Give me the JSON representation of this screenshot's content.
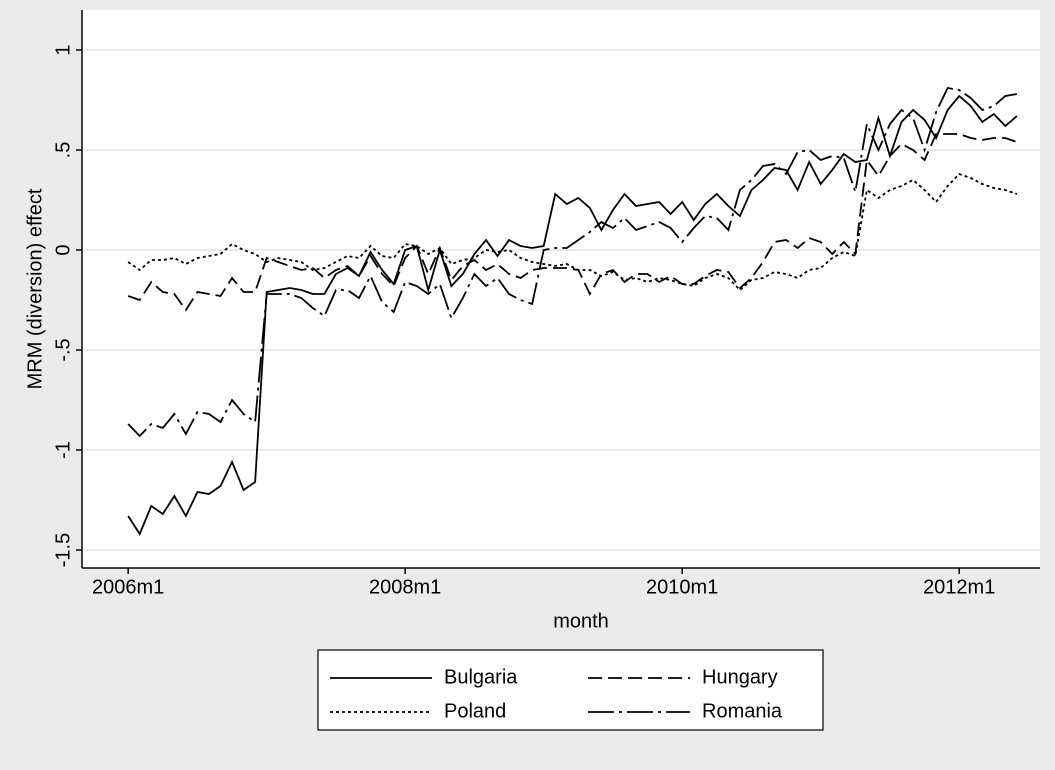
{
  "chart_data": {
    "type": "line",
    "x_label": "month",
    "y_label": "MRM (diversion) effect",
    "x": [
      552,
      553,
      554,
      555,
      556,
      557,
      558,
      559,
      560,
      561,
      562,
      563,
      564,
      565,
      566,
      567,
      568,
      569,
      570,
      571,
      572,
      573,
      574,
      575,
      576,
      577,
      578,
      579,
      580,
      581,
      582,
      583,
      584,
      585,
      586,
      587,
      588,
      589,
      590,
      591,
      592,
      593,
      594,
      595,
      596,
      597,
      598,
      599,
      600,
      601,
      602,
      603,
      604,
      605,
      606,
      607,
      608,
      609,
      610,
      611,
      612,
      613,
      614,
      615,
      616,
      617,
      618,
      619,
      620,
      621,
      622,
      623,
      624,
      625,
      626,
      627,
      628,
      629
    ],
    "xlim": [
      548,
      631
    ],
    "xticks": [
      {
        "value": 552,
        "label": "2006m1"
      },
      {
        "value": 576,
        "label": "2008m1"
      },
      {
        "value": 600,
        "label": "2010m1"
      },
      {
        "value": 624,
        "label": "2012m1"
      }
    ],
    "ylim": [
      -1.59,
      1.2
    ],
    "yticks": [
      1,
      {
        "value": 0.5,
        "label": ".5"
      },
      0,
      {
        "value": -0.5,
        "label": "-.5"
      },
      -1,
      {
        "value": -1.5,
        "label": "-1.5"
      }
    ],
    "grid": true,
    "legend": "bottom",
    "series": [
      {
        "name": "Bulgaria",
        "color": "#000000",
        "linestyle": "solid",
        "values": [
          -1.33,
          -1.42,
          -1.28,
          -1.32,
          -1.23,
          -1.33,
          -1.21,
          -1.22,
          -1.18,
          -1.06,
          -1.2,
          -1.16,
          -0.21,
          -0.2,
          -0.19,
          -0.2,
          -0.22,
          -0.22,
          -0.12,
          -0.09,
          -0.13,
          -0.01,
          -0.1,
          -0.17,
          0.0,
          0.02,
          -0.2,
          0.0,
          -0.18,
          -0.12,
          -0.02,
          0.05,
          -0.03,
          0.05,
          0.02,
          0.01,
          0.02,
          0.28,
          0.23,
          0.26,
          0.21,
          0.1,
          0.2,
          0.28,
          0.22,
          0.23,
          0.24,
          0.18,
          0.24,
          0.15,
          0.23,
          0.28,
          0.22,
          0.17,
          0.3,
          0.35,
          0.41,
          0.4,
          0.3,
          0.44,
          0.33,
          0.4,
          0.48,
          0.44,
          0.45,
          0.66,
          0.47,
          0.64,
          0.7,
          0.65,
          0.56,
          0.7,
          0.77,
          0.72,
          0.64,
          0.68,
          0.62,
          0.67
        ]
      },
      {
        "name": "Hungary",
        "color": "#000000",
        "linestyle": "dashed",
        "values": [
          -0.23,
          -0.25,
          -0.16,
          -0.21,
          -0.22,
          -0.3,
          -0.21,
          -0.22,
          -0.23,
          -0.14,
          -0.21,
          -0.21,
          -0.04,
          -0.06,
          -0.08,
          -0.1,
          -0.09,
          -0.14,
          -0.1,
          -0.08,
          -0.13,
          -0.03,
          -0.12,
          -0.18,
          -0.04,
          0.02,
          -0.12,
          0.01,
          -0.15,
          -0.08,
          -0.05,
          -0.1,
          -0.07,
          -0.12,
          -0.14,
          -0.1,
          -0.09,
          -0.09,
          -0.09,
          -0.1,
          -0.22,
          -0.12,
          -0.1,
          -0.16,
          -0.12,
          -0.12,
          -0.16,
          -0.13,
          -0.17,
          -0.17,
          -0.13,
          -0.1,
          -0.11,
          -0.19,
          -0.14,
          -0.06,
          0.04,
          0.05,
          0.01,
          0.06,
          0.04,
          -0.02,
          0.04,
          -0.02,
          0.45,
          0.37,
          0.47,
          0.53,
          0.5,
          0.45,
          0.58,
          0.58,
          0.58,
          0.56,
          0.55,
          0.56,
          0.56,
          0.54
        ]
      },
      {
        "name": "Poland",
        "color": "#000000",
        "linestyle": "dotted",
        "values": [
          -0.06,
          -0.1,
          -0.05,
          -0.05,
          -0.04,
          -0.07,
          -0.04,
          -0.03,
          -0.02,
          0.03,
          0.0,
          -0.02,
          -0.06,
          -0.04,
          -0.05,
          -0.06,
          -0.1,
          -0.09,
          -0.06,
          -0.03,
          -0.04,
          0.02,
          -0.03,
          -0.04,
          0.03,
          0.02,
          -0.02,
          0.01,
          -0.07,
          -0.05,
          -0.04,
          0.0,
          -0.01,
          0.0,
          -0.04,
          -0.06,
          -0.07,
          -0.08,
          -0.07,
          -0.1,
          -0.1,
          -0.13,
          -0.11,
          -0.15,
          -0.14,
          -0.16,
          -0.14,
          -0.15,
          -0.17,
          -0.18,
          -0.14,
          -0.12,
          -0.14,
          -0.2,
          -0.15,
          -0.14,
          -0.11,
          -0.12,
          -0.14,
          -0.1,
          -0.09,
          -0.04,
          -0.01,
          -0.03,
          0.3,
          0.26,
          0.3,
          0.32,
          0.35,
          0.3,
          0.24,
          0.32,
          0.38,
          0.36,
          0.33,
          0.31,
          0.3,
          0.28
        ]
      },
      {
        "name": "Romania",
        "color": "#000000",
        "linestyle": "longdash-dot",
        "values": [
          -0.87,
          -0.93,
          -0.87,
          -0.89,
          -0.82,
          -0.92,
          -0.81,
          -0.82,
          -0.86,
          -0.75,
          -0.82,
          -0.86,
          -0.22,
          -0.22,
          -0.22,
          -0.24,
          -0.29,
          -0.33,
          -0.2,
          -0.2,
          -0.24,
          -0.13,
          -0.26,
          -0.31,
          -0.16,
          -0.18,
          -0.22,
          -0.17,
          -0.34,
          -0.24,
          -0.12,
          -0.18,
          -0.14,
          -0.22,
          -0.25,
          -0.27,
          0.0,
          0.01,
          0.01,
          0.05,
          0.09,
          0.14,
          0.11,
          0.16,
          0.1,
          0.12,
          0.14,
          0.11,
          0.04,
          0.11,
          0.17,
          0.16,
          0.1,
          0.3,
          0.35,
          0.42,
          0.43,
          0.38,
          0.49,
          0.5,
          0.45,
          0.47,
          0.46,
          0.29,
          0.63,
          0.5,
          0.63,
          0.7,
          0.66,
          0.5,
          0.69,
          0.81,
          0.8,
          0.76,
          0.7,
          0.72,
          0.77,
          0.78
        ]
      }
    ]
  }
}
